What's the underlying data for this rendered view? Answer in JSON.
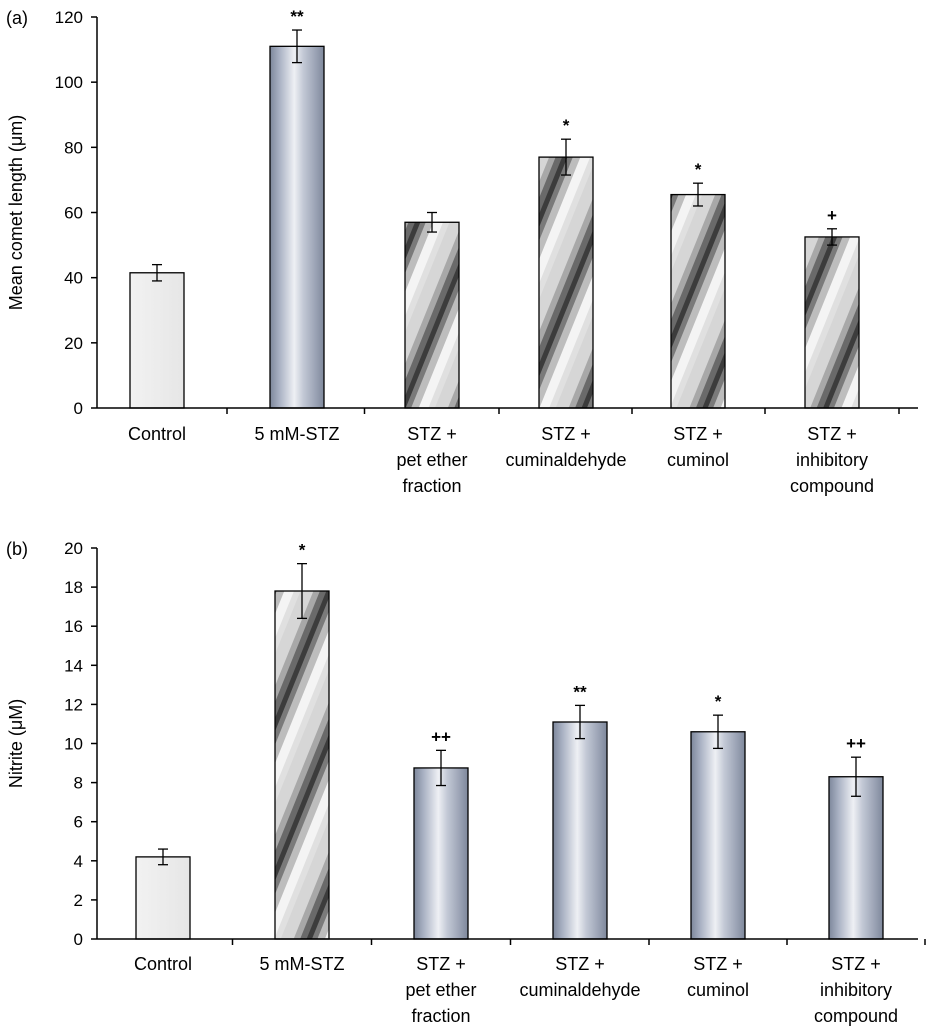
{
  "chart_data": [
    {
      "type": "bar",
      "panel": "(a)",
      "ylabel": "Mean comet length (μm)",
      "ylim": [
        0,
        120
      ],
      "yticks": [
        0,
        20,
        40,
        60,
        80,
        100,
        120
      ],
      "categories": [
        [
          "Control"
        ],
        [
          "5 mM-STZ"
        ],
        [
          "STZ +",
          "pet ether",
          "fraction"
        ],
        [
          "STZ +",
          "cuminaldehyde"
        ],
        [
          "STZ +",
          "cuminol"
        ],
        [
          "STZ +",
          "inhibitory",
          "compound"
        ]
      ],
      "values": [
        41.5,
        111,
        57,
        77,
        65.5,
        52.5
      ],
      "errors": [
        2.5,
        5,
        3,
        5.5,
        3.5,
        2.5
      ],
      "significance": [
        "",
        "**",
        "",
        "*",
        "*",
        "+"
      ],
      "styles": [
        "plain",
        "blue",
        "stripe",
        "stripe",
        "stripe",
        "stripe"
      ],
      "grid": false
    },
    {
      "type": "bar",
      "panel": "(b)",
      "ylabel": "Nitrite (μM)",
      "ylim": [
        0,
        20
      ],
      "yticks": [
        0,
        2,
        4,
        6,
        8,
        10,
        12,
        14,
        16,
        18,
        20
      ],
      "categories": [
        [
          "Control"
        ],
        [
          "5 mM-STZ"
        ],
        [
          "STZ +",
          "pet ether",
          "fraction"
        ],
        [
          "STZ +",
          "cuminaldehyde"
        ],
        [
          "STZ +",
          "cuminol"
        ],
        [
          "STZ +",
          "inhibitory",
          "compound"
        ]
      ],
      "values": [
        4.2,
        17.8,
        8.75,
        11.1,
        10.6,
        8.3
      ],
      "errors": [
        0.4,
        1.4,
        0.9,
        0.85,
        0.85,
        1.0
      ],
      "significance": [
        "",
        "*",
        "++",
        "**",
        "*",
        "++"
      ],
      "styles": [
        "plain",
        "stripe",
        "blue",
        "blue",
        "blue",
        "blue"
      ],
      "grid": false
    }
  ]
}
